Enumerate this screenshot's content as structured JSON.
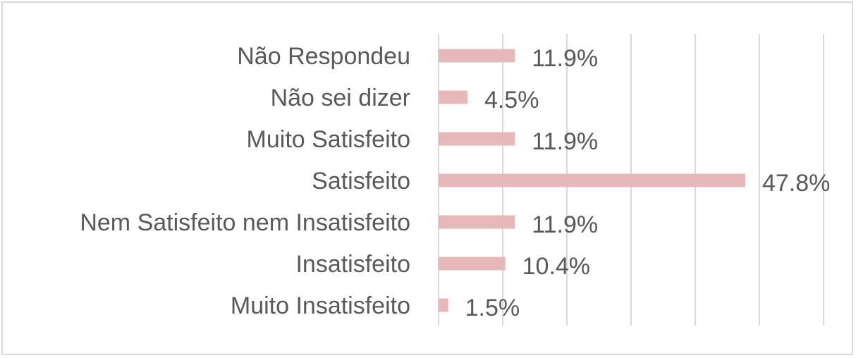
{
  "chart_data": {
    "type": "bar",
    "orientation": "horizontal",
    "categories": [
      "Não Respondeu",
      "Não sei dizer",
      "Muito Satisfeito",
      "Satisfeito",
      "Nem Satisfeito nem Insatisfeito",
      "Insatisfeito",
      "Muito Insatisfeito"
    ],
    "values": [
      11.9,
      4.5,
      11.9,
      47.8,
      11.9,
      10.4,
      1.5
    ],
    "value_labels": [
      "11.9%",
      "4.5%",
      "11.9%",
      "47.8%",
      "11.9%",
      "10.4%",
      "1.5%"
    ],
    "xlim": [
      0,
      60
    ],
    "grid": true,
    "bar_color": "#e6b9b8",
    "title": "",
    "xlabel": "",
    "ylabel": ""
  }
}
